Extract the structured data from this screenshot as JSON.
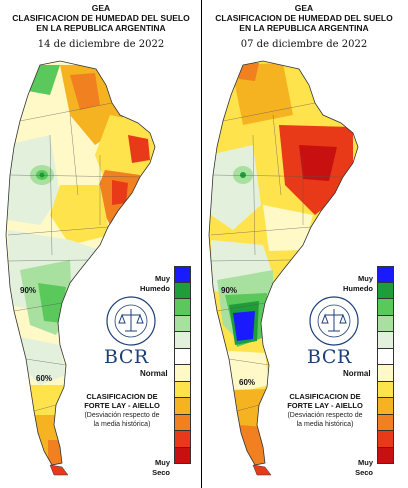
{
  "panels": [
    {
      "org": "GEA",
      "title_line1": "CLASIFICACION DE HUMEDAD DEL SUELO",
      "title_line2": "EN LA REPUBLICA ARGENTINA",
      "date": "14 de diciembre de 2022",
      "contour_labels": [
        "90%",
        "60%"
      ]
    },
    {
      "org": "GEA",
      "title_line1": "CLASIFICACION DE HUMEDAD DEL SUELO",
      "title_line2": "EN LA REPUBLICA ARGENTINA",
      "date": "07 de diciembre de 2022",
      "contour_labels": [
        "90%",
        "60%"
      ]
    }
  ],
  "legend": {
    "wet_label_1": "Muy",
    "wet_label_2": "Humedo",
    "normal_label": "Normal",
    "dry_label_1": "Muy",
    "dry_label_2": "Seco",
    "colors": [
      "#1a1aff",
      "#1e9e3a",
      "#5ac85a",
      "#a8e0a0",
      "#e3f1dc",
      "#ffffff",
      "#fff9c8",
      "#ffe34d",
      "#f5b321",
      "#f08020",
      "#e83a18",
      "#c81010"
    ]
  },
  "brand": {
    "name": "BCR",
    "seal_text": "BOLSA DE COMERCIO DE ROSARIO"
  },
  "classification": {
    "line1": "CLASIFICACION DE",
    "line2": "FORTE LAY - AIELLO",
    "note1": "(Desviación respecto de",
    "note2": "la media histórica)"
  }
}
